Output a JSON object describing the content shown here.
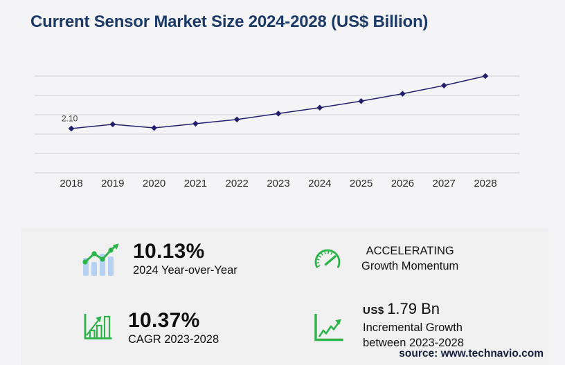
{
  "header": {
    "title": "Current Sensor Market Size 2024-2028 (US$ Billion)"
  },
  "chart_data": {
    "type": "line",
    "title": "Current Sensor Market Size 2024-2028 (US$ Billion)",
    "categories": [
      "2018",
      "2019",
      "2020",
      "2021",
      "2022",
      "2023",
      "2024",
      "2025",
      "2026",
      "2027",
      "2028"
    ],
    "series": [
      {
        "name": "Market size (US$ Billion)",
        "values": [
          2.1,
          2.3,
          2.13,
          2.33,
          2.53,
          2.81,
          3.09,
          3.4,
          3.75,
          4.14,
          4.59
        ]
      }
    ],
    "first_point_label": "2.10",
    "xlabel": "",
    "ylabel": "",
    "ylim": [
      0,
      4.59
    ],
    "gridline_count": 6,
    "grid": true,
    "legend": "none",
    "line_color": "#221e6b",
    "marker": "diamond",
    "gridline_color": "#cdced3",
    "tick_label_color": "#2b2b2b"
  },
  "stats": {
    "yoy": {
      "value": "10.13%",
      "label": "2024 Year-over-Year"
    },
    "momentum": {
      "line1": "ACCELERATING",
      "line2": "Growth Momentum"
    },
    "cagr": {
      "value": "10.37%",
      "label": "CAGR 2023-2028"
    },
    "incremental": {
      "currency": "US$",
      "amount": "1.79 Bn",
      "line1": "Incremental Growth",
      "line2": "between 2023-2028"
    }
  },
  "footer": {
    "source": "source: www.technavio.com"
  },
  "colors": {
    "accent_green": "#2cb34a",
    "bar_blue": "#b5d2f2",
    "navy_title": "#1c3a67"
  }
}
